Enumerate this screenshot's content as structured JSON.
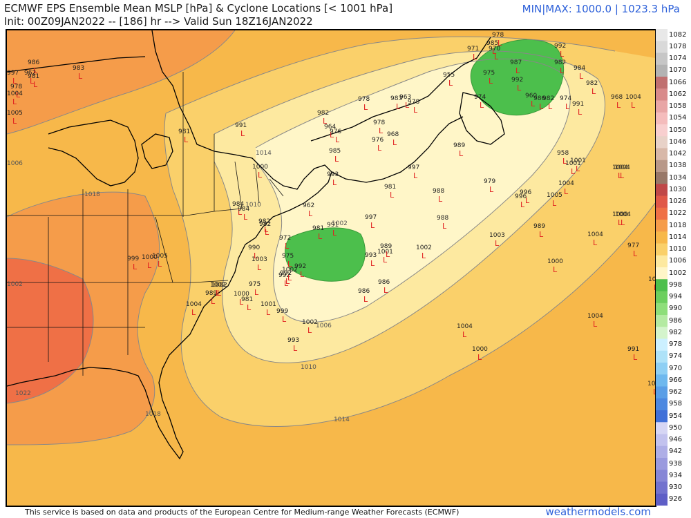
{
  "header": {
    "title": "ECMWF EPS Ensemble Mean MSLP [hPa] & Cyclone Locations [< 1001 hPa]",
    "init_line": "Init: 00Z09JAN2022 -- [186] hr --> Valid Sun 18Z16JAN2022",
    "minmax": "MIN|MAX: 1000.0 | 1023.3 hPa"
  },
  "footer": {
    "credit": "This service is based on data and products of the European Centre for Medium-range Weather Forecasts (ECMWF)",
    "brand": "weathermodels.com"
  },
  "colorbar": {
    "labels": [
      "1082",
      "1078",
      "1074",
      "1070",
      "1066",
      "1062",
      "1058",
      "1054",
      "1050",
      "1046",
      "1042",
      "1038",
      "1034",
      "1030",
      "1026",
      "1022",
      "1018",
      "1014",
      "1010",
      "1006",
      "1002",
      "998",
      "994",
      "990",
      "986",
      "982",
      "978",
      "974",
      "970",
      "966",
      "962",
      "958",
      "954",
      "950",
      "946",
      "942",
      "938",
      "934",
      "930",
      "926"
    ],
    "colors": [
      "#e8e8e8",
      "#d9d9d9",
      "#c6c6c6",
      "#b3b3b3",
      "#c07070",
      "#d88a8a",
      "#e8a6a6",
      "#f4bcbc",
      "#f8cfcf",
      "#e8d2c8",
      "#d8b8a8",
      "#b89888",
      "#987868",
      "#c04848",
      "#e05848",
      "#ef7046",
      "#f59c4a",
      "#f7b84a",
      "#fad06a",
      "#fde9a0",
      "#fff6c8",
      "#4cbf4c",
      "#6ccf5e",
      "#8ede7a",
      "#b4eaa2",
      "#d4f4cc",
      "#ccf0ff",
      "#aee2f8",
      "#8ecff4",
      "#6eb8ee",
      "#5a9ee6",
      "#4c88e0",
      "#4070d8",
      "#d6d6f4",
      "#c2c2ee",
      "#aeaee6",
      "#9a9ade",
      "#8686d6",
      "#7272ce",
      "#5e5ec6"
    ]
  },
  "isobars": [
    {
      "label": "1002"
    },
    {
      "label": "1006"
    },
    {
      "label": "1010"
    },
    {
      "label": "1014"
    },
    {
      "label": "1018"
    },
    {
      "label": "1022"
    },
    {
      "label": "1010"
    },
    {
      "label": "1014"
    },
    {
      "label": "1018"
    },
    {
      "label": "1002"
    },
    {
      "label": "1006"
    }
  ],
  "cyclones": [
    {
      "p": "978"
    },
    {
      "p": "985"
    },
    {
      "p": "970"
    },
    {
      "p": "992"
    },
    {
      "p": "971"
    },
    {
      "p": "987"
    },
    {
      "p": "982"
    },
    {
      "p": "984"
    },
    {
      "p": "955"
    },
    {
      "p": "975"
    },
    {
      "p": "992"
    },
    {
      "p": "974"
    },
    {
      "p": "960"
    },
    {
      "p": "986"
    },
    {
      "p": "982"
    },
    {
      "p": "974"
    },
    {
      "p": "991"
    },
    {
      "p": "982"
    },
    {
      "p": "968"
    },
    {
      "p": "1004"
    },
    {
      "p": "978"
    },
    {
      "p": "983"
    },
    {
      "p": "963"
    },
    {
      "p": "978"
    },
    {
      "p": "982"
    },
    {
      "p": "964"
    },
    {
      "p": "976"
    },
    {
      "p": "978"
    },
    {
      "p": "976"
    },
    {
      "p": "968"
    },
    {
      "p": "985"
    },
    {
      "p": "993"
    },
    {
      "p": "958"
    },
    {
      "p": "1001"
    },
    {
      "p": "1004"
    },
    {
      "p": "1005"
    },
    {
      "p": "981"
    },
    {
      "p": "988"
    },
    {
      "p": "979"
    },
    {
      "p": "996"
    },
    {
      "p": "1005"
    },
    {
      "p": "1004"
    },
    {
      "p": "986"
    },
    {
      "p": "983"
    },
    {
      "p": "997"
    },
    {
      "p": "962"
    },
    {
      "p": "978"
    },
    {
      "p": "981"
    },
    {
      "p": "991"
    },
    {
      "p": "997"
    },
    {
      "p": "981"
    },
    {
      "p": "1000"
    },
    {
      "p": "989"
    },
    {
      "p": "984"
    },
    {
      "p": "982"
    },
    {
      "p": "972"
    },
    {
      "p": "1003"
    },
    {
      "p": "989"
    },
    {
      "p": "1004"
    },
    {
      "p": "977"
    },
    {
      "p": "986"
    },
    {
      "p": "982"
    },
    {
      "p": "962"
    },
    {
      "p": "981"
    },
    {
      "p": "993"
    },
    {
      "p": "1001"
    },
    {
      "p": "989"
    },
    {
      "p": "1002"
    },
    {
      "p": "990"
    },
    {
      "p": "975"
    },
    {
      "p": "992"
    },
    {
      "p": "1003"
    },
    {
      "p": "1000"
    },
    {
      "p": "1002"
    },
    {
      "p": "975"
    },
    {
      "p": "992"
    },
    {
      "p": "986"
    },
    {
      "p": "981"
    },
    {
      "p": "1001"
    },
    {
      "p": "999"
    },
    {
      "p": "1002"
    },
    {
      "p": "993"
    },
    {
      "p": "1004"
    },
    {
      "p": "1000"
    },
    {
      "p": "1004"
    },
    {
      "p": "991"
    },
    {
      "p": "1002"
    },
    {
      "p": "1004"
    },
    {
      "p": "989"
    },
    {
      "p": "1002"
    },
    {
      "p": "1000"
    },
    {
      "p": "1004"
    },
    {
      "p": "992"
    },
    {
      "p": "997"
    },
    {
      "p": "999"
    },
    {
      "p": "1005"
    },
    {
      "p": "984"
    },
    {
      "p": "988"
    },
    {
      "p": "991"
    },
    {
      "p": "1002"
    },
    {
      "p": "1000"
    },
    {
      "p": "1004"
    },
    {
      "p": "1001"
    },
    {
      "p": "996"
    },
    {
      "p": "1002"
    },
    {
      "p": "1000"
    },
    {
      "p": "1004"
    }
  ]
}
